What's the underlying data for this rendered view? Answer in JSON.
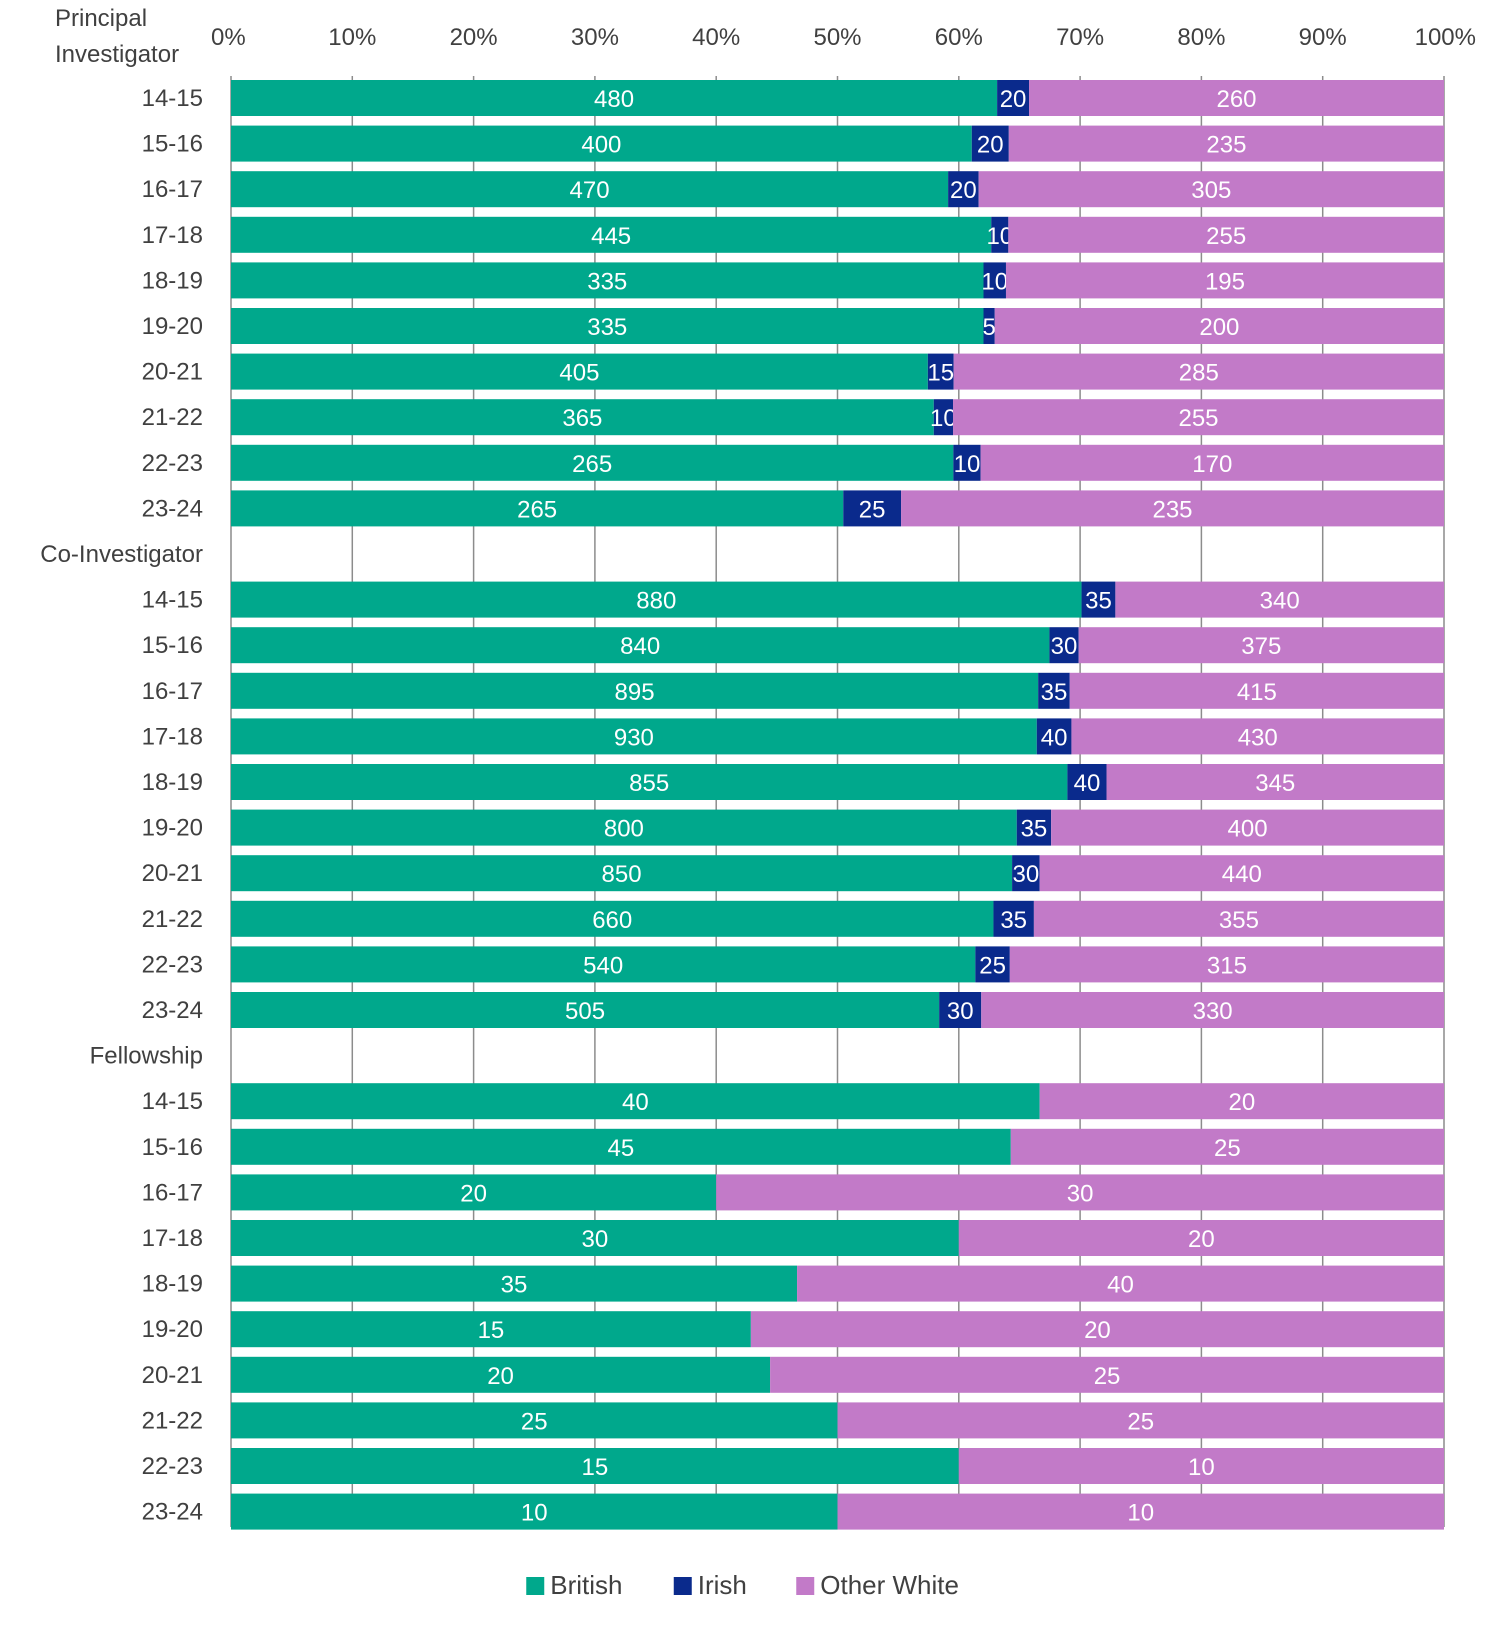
{
  "chart_data": {
    "type": "bar",
    "orientation": "horizontal",
    "stacking": "percent",
    "xlim": [
      0,
      100
    ],
    "x_ticks": [
      "0%",
      "10%",
      "20%",
      "30%",
      "40%",
      "50%",
      "60%",
      "70%",
      "80%",
      "90%",
      "100%"
    ],
    "grid": true,
    "legend_position": "bottom",
    "series": [
      {
        "name": "British",
        "color": "#00a88c"
      },
      {
        "name": "Irish",
        "color": "#0a2a8c"
      },
      {
        "name": "Other White",
        "color": "#c27ac8"
      }
    ],
    "groups": [
      {
        "label": "Principal Investigator",
        "label_lines": [
          "Principal",
          "Investigator"
        ],
        "rows": [
          {
            "label": "14-15",
            "values": [
              480,
              20,
              260
            ]
          },
          {
            "label": "15-16",
            "values": [
              400,
              20,
              235
            ]
          },
          {
            "label": "16-17",
            "values": [
              470,
              20,
              305
            ]
          },
          {
            "label": "17-18",
            "values": [
              445,
              10,
              255
            ]
          },
          {
            "label": "18-19",
            "values": [
              335,
              10,
              195
            ]
          },
          {
            "label": "19-20",
            "values": [
              335,
              5,
              200
            ]
          },
          {
            "label": "20-21",
            "values": [
              405,
              15,
              285
            ]
          },
          {
            "label": "21-22",
            "values": [
              365,
              10,
              255
            ]
          },
          {
            "label": "22-23",
            "values": [
              265,
              10,
              170
            ]
          },
          {
            "label": "23-24",
            "values": [
              265,
              25,
              235
            ]
          }
        ]
      },
      {
        "label": "Co-Investigator",
        "label_lines": [
          "Co-Investigator"
        ],
        "rows": [
          {
            "label": "14-15",
            "values": [
              880,
              35,
              340
            ]
          },
          {
            "label": "15-16",
            "values": [
              840,
              30,
              375
            ]
          },
          {
            "label": "16-17",
            "values": [
              895,
              35,
              415
            ]
          },
          {
            "label": "17-18",
            "values": [
              930,
              40,
              430
            ]
          },
          {
            "label": "18-19",
            "values": [
              855,
              40,
              345
            ]
          },
          {
            "label": "19-20",
            "values": [
              800,
              35,
              400
            ]
          },
          {
            "label": "20-21",
            "values": [
              850,
              30,
              440
            ]
          },
          {
            "label": "21-22",
            "values": [
              660,
              35,
              355
            ]
          },
          {
            "label": "22-23",
            "values": [
              540,
              25,
              315
            ]
          },
          {
            "label": "23-24",
            "values": [
              505,
              30,
              330
            ]
          }
        ]
      },
      {
        "label": "Fellowship",
        "label_lines": [
          "Fellowship"
        ],
        "rows": [
          {
            "label": "14-15",
            "values": [
              40,
              0,
              20
            ]
          },
          {
            "label": "15-16",
            "values": [
              45,
              0,
              25
            ]
          },
          {
            "label": "16-17",
            "values": [
              20,
              0,
              30
            ]
          },
          {
            "label": "17-18",
            "values": [
              30,
              0,
              20
            ]
          },
          {
            "label": "18-19",
            "values": [
              35,
              0,
              40
            ]
          },
          {
            "label": "19-20",
            "values": [
              15,
              0,
              20
            ]
          },
          {
            "label": "20-21",
            "values": [
              20,
              0,
              25
            ]
          },
          {
            "label": "21-22",
            "values": [
              25,
              0,
              25
            ]
          },
          {
            "label": "22-23",
            "values": [
              15,
              0,
              10
            ]
          },
          {
            "label": "23-24",
            "values": [
              10,
              0,
              10
            ]
          }
        ]
      }
    ]
  }
}
